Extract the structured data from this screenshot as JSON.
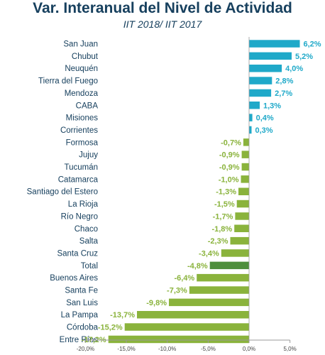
{
  "chart_data": {
    "type": "bar",
    "orientation": "horizontal",
    "title": "Var. Interanual del Nivel de Actividad",
    "subtitle": "IIT 2018/ IIT 2017",
    "categories": [
      "San Juan",
      "Chubut",
      "Neuquén",
      "Tierra del Fuego",
      "Mendoza",
      "CABA",
      "Misiones",
      "Corrientes",
      "Formosa",
      "Jujuy",
      "Tucumán",
      "Catamarca",
      "Santiago del Estero",
      "La Rioja",
      "Río Negro",
      "Chaco",
      "Salta",
      "Santa Cruz",
      "Total",
      "Buenos Aires",
      "Santa Fe",
      "San Luis",
      "La Pampa",
      "Córdoba",
      "Entre Ríos"
    ],
    "values": [
      6.2,
      5.2,
      4.0,
      2.8,
      2.7,
      1.3,
      0.4,
      0.3,
      -0.7,
      -0.9,
      -0.9,
      -1.0,
      -1.3,
      -1.5,
      -1.7,
      -1.8,
      -2.3,
      -3.4,
      -4.8,
      -6.4,
      -7.3,
      -9.8,
      -13.7,
      -15.2,
      -17.2
    ],
    "value_labels": [
      "6,2%",
      "5,2%",
      "4,0%",
      "2,8%",
      "2,7%",
      "1,3%",
      "0,4%",
      "0,3%",
      "-0,7%",
      "-0,9%",
      "-0,9%",
      "-1,0%",
      "-1,3%",
      "-1,5%",
      "-1,7%",
      "-1,8%",
      "-2,3%",
      "-3,4%",
      "-4,8%",
      "-6,4%",
      "-7,3%",
      "-9,8%",
      "-13,7%",
      "-15,2%",
      "-17,2%"
    ],
    "highlight_category": "Total",
    "xlim": [
      -20,
      5
    ],
    "x_ticks": [
      -20,
      -15,
      -10,
      -5,
      0,
      5
    ],
    "x_tick_labels": [
      "-20,0%",
      "-15,0%",
      "-10,0%",
      "-5,0%",
      "0,0%",
      "5,0%"
    ],
    "xlabel": "",
    "ylabel": "",
    "grid": false,
    "colors": {
      "positive": "#1fa9c9",
      "negative": "#8ab33c",
      "highlight": "#4e8e3c",
      "title": "#17405e",
      "axis": "#9a9a9a"
    }
  }
}
